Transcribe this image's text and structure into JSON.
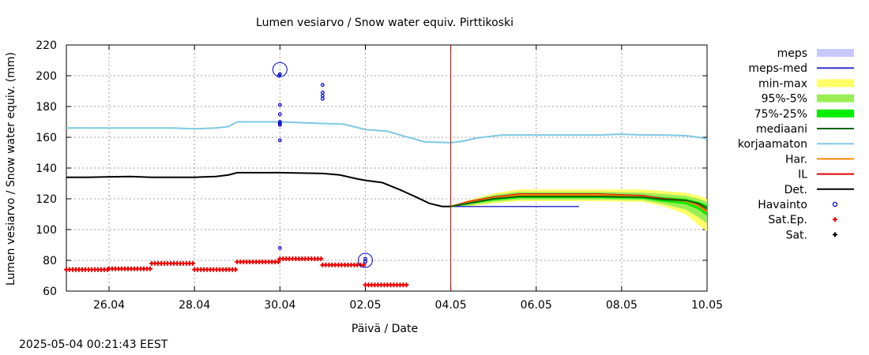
{
  "chart_data": {
    "type": "line",
    "title": "Lumen vesiarvo / Snow water equiv.  Pirttikoski",
    "xlabel": "Päivä / Date",
    "ylabel": "Lumen vesiarvo / Snow water equiv. (mm)",
    "timestamp": "2025-05-04 00:21:43 EEST",
    "ylim": [
      60,
      220
    ],
    "xlim": [
      25.0,
      40.0
    ],
    "yticks": [
      60,
      80,
      100,
      120,
      140,
      160,
      180,
      200,
      220
    ],
    "xticks": [
      {
        "x": 26,
        "label": "26.04"
      },
      {
        "x": 28,
        "label": "28.04"
      },
      {
        "x": 30,
        "label": "30.04"
      },
      {
        "x": 32,
        "label": "02.05"
      },
      {
        "x": 34,
        "label": "04.05"
      },
      {
        "x": 36,
        "label": "06.05"
      },
      {
        "x": 38,
        "label": "08.05"
      },
      {
        "x": 40,
        "label": "10.05"
      }
    ],
    "grid": true,
    "legend_position": "right",
    "now_line_x": 34.0,
    "legend": [
      {
        "label": "meps",
        "kind": "fill",
        "color": "#c8c8ff"
      },
      {
        "label": "meps-med",
        "kind": "line",
        "color": "#3333cc"
      },
      {
        "label": "min-max",
        "kind": "fill",
        "color": "#ffff66"
      },
      {
        "label": "95%-5%",
        "kind": "fill",
        "color": "#99ee55"
      },
      {
        "label": "75%-25%",
        "kind": "fill",
        "color": "#00ee00"
      },
      {
        "label": "mediaani",
        "kind": "line",
        "color": "#006600"
      },
      {
        "label": "korjaamaton",
        "kind": "line",
        "color": "#7ec8e3"
      },
      {
        "label": "Har.",
        "kind": "line",
        "color": "#ff8800"
      },
      {
        "label": "IL",
        "kind": "line",
        "color": "#dd0000"
      },
      {
        "label": "Det.",
        "kind": "line",
        "color": "#000000"
      },
      {
        "label": "Havainto",
        "kind": "circle",
        "color": "#0000cc"
      },
      {
        "label": "Sat.Ep.",
        "kind": "plus",
        "color": "#ee0000"
      },
      {
        "label": "Sat.",
        "kind": "plus",
        "color": "#000000"
      }
    ],
    "series": [
      {
        "name": "korjaamaton",
        "color": "#7ec8e3",
        "x": [
          25.0,
          26.5,
          27.5,
          28.0,
          28.5,
          28.8,
          29.0,
          30.0,
          31.0,
          31.5,
          32.0,
          32.5,
          33.0,
          33.4,
          34.0,
          34.3,
          34.6,
          35.2,
          36.0,
          37.5,
          38.0,
          38.5,
          39.0,
          39.5,
          39.8,
          40.0
        ],
        "y": [
          166,
          166,
          166,
          165.5,
          166,
          167,
          170,
          170,
          169,
          168.5,
          165,
          164,
          160,
          157,
          156.5,
          157.5,
          159.5,
          161.5,
          161.5,
          161.5,
          162,
          161.5,
          161.5,
          161,
          160,
          159
        ]
      },
      {
        "name": "Det.",
        "color": "#000000",
        "x": [
          25.0,
          25.5,
          26.5,
          27.0,
          28.0,
          28.5,
          28.8,
          29.0,
          30.0,
          31.0,
          31.4,
          31.8,
          32.0,
          32.4,
          32.8,
          33.2,
          33.5,
          33.8,
          34.0
        ],
        "y": [
          134,
          134,
          134.5,
          134,
          134,
          134.5,
          135.5,
          137,
          137,
          136.5,
          135.5,
          133,
          132,
          130.5,
          126,
          121,
          117,
          115,
          115
        ]
      },
      {
        "name": "meps-med",
        "color": "#3333cc",
        "x": [
          34.0,
          34.4,
          35.0,
          36.0,
          37.0
        ],
        "y": [
          115,
          115,
          115,
          115,
          115
        ]
      },
      {
        "name": "IL",
        "color": "#dd0000",
        "x": [
          34.0,
          34.4,
          35.0,
          35.6,
          36.5,
          37.5,
          38.5,
          39.0,
          39.5,
          39.8,
          40.0
        ],
        "y": [
          115,
          118,
          121,
          123,
          123,
          123,
          122,
          120,
          119,
          116,
          112
        ]
      },
      {
        "name": "Har.",
        "color": "#ff8800",
        "x": [
          34.0,
          34.4,
          35.0,
          35.6,
          36.5,
          37.5,
          38.5,
          39.0,
          39.5,
          39.8,
          40.0
        ],
        "y": [
          115,
          117.5,
          120.5,
          122.5,
          122.5,
          122.5,
          121.5,
          119.5,
          118.5,
          115.5,
          111.5
        ]
      },
      {
        "name": "mediaani",
        "color": "#006600",
        "x": [
          34.0,
          34.4,
          35.0,
          35.6,
          36.5,
          37.5,
          38.5,
          39.0,
          39.5,
          39.8,
          40.0
        ],
        "y": [
          115,
          117,
          120,
          121.5,
          121.5,
          121.5,
          121,
          119.5,
          119,
          117,
          114
        ]
      }
    ],
    "bands": [
      {
        "name": "min-max",
        "color": "#ffff66",
        "x": [
          34.0,
          34.4,
          35.0,
          35.6,
          36.5,
          37.5,
          38.5,
          39.0,
          39.5,
          39.8,
          40.0
        ],
        "hi": [
          115,
          119,
          123.5,
          126,
          126,
          126,
          126,
          125,
          124,
          122,
          120
        ],
        "lo": [
          115,
          115,
          117,
          118.5,
          118.5,
          118.5,
          118,
          115,
          110,
          103,
          99
        ]
      },
      {
        "name": "95%-5%",
        "color": "#99ee55",
        "x": [
          34.0,
          34.4,
          35.0,
          35.6,
          36.5,
          37.5,
          38.5,
          39.0,
          39.5,
          39.8,
          40.0
        ],
        "hi": [
          115,
          118.5,
          122.5,
          124.5,
          124.5,
          124.5,
          124,
          123,
          122,
          120,
          118
        ],
        "lo": [
          115,
          115.5,
          118,
          119.5,
          119.5,
          119.5,
          119,
          116.5,
          113,
          108,
          104
        ]
      },
      {
        "name": "75%-25%",
        "color": "#00ee00",
        "x": [
          34.0,
          34.4,
          35.0,
          35.6,
          36.5,
          37.5,
          38.5,
          39.0,
          39.5,
          39.8,
          40.0
        ],
        "hi": [
          115,
          117.5,
          121,
          122.5,
          122.5,
          122.5,
          122,
          121,
          120,
          118,
          116
        ],
        "lo": [
          115,
          116.5,
          119,
          120.5,
          120.5,
          120.5,
          120,
          118,
          116.5,
          113,
          109
        ]
      }
    ],
    "sat_ep": [
      {
        "x0": 25.0,
        "x1": 26.0,
        "y": 74
      },
      {
        "x0": 26.0,
        "x1": 27.0,
        "y": 74.5
      },
      {
        "x0": 27.0,
        "x1": 28.0,
        "y": 78
      },
      {
        "x0": 28.0,
        "x1": 29.0,
        "y": 74
      },
      {
        "x0": 29.0,
        "x1": 30.0,
        "y": 79
      },
      {
        "x0": 30.0,
        "x1": 31.0,
        "y": 81
      },
      {
        "x0": 31.0,
        "x1": 32.0,
        "y": 77
      },
      {
        "x0": 32.0,
        "x1": 33.0,
        "y": 64
      }
    ],
    "havainto": [
      {
        "x": 30.0,
        "y": 204,
        "big": true
      },
      {
        "x": 30.0,
        "y": 201
      },
      {
        "x": 29.98,
        "y": 200
      },
      {
        "x": 30.0,
        "y": 181
      },
      {
        "x": 30.0,
        "y": 175
      },
      {
        "x": 30.0,
        "y": 170
      },
      {
        "x": 30.0,
        "y": 169
      },
      {
        "x": 30.0,
        "y": 168
      },
      {
        "x": 30.0,
        "y": 158
      },
      {
        "x": 30.0,
        "y": 88
      },
      {
        "x": 31.0,
        "y": 194
      },
      {
        "x": 31.0,
        "y": 189
      },
      {
        "x": 31.0,
        "y": 187
      },
      {
        "x": 31.0,
        "y": 185
      },
      {
        "x": 32.0,
        "y": 80,
        "big": true
      },
      {
        "x": 32.0,
        "y": 81
      },
      {
        "x": 32.0,
        "y": 79
      }
    ]
  }
}
